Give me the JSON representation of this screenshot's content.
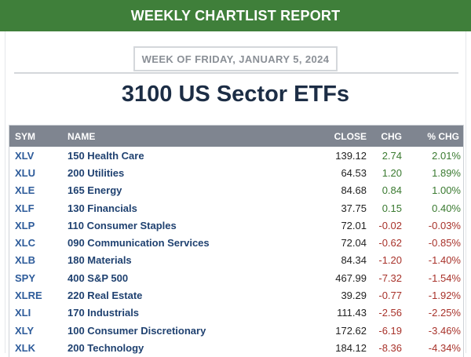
{
  "header": {
    "banner_title": "WEEKLY CHARTLIST REPORT",
    "week_label": "WEEK OF FRIDAY, JANUARY 5, 2024",
    "page_title": "3100 US Sector ETFs"
  },
  "colors": {
    "banner_bg": "#3f7f3a",
    "table_header_bg": "#7f8590",
    "positive": "#3a7a30",
    "negative": "#a8322a",
    "symbol_link": "#2d5b9a"
  },
  "table": {
    "columns": {
      "sym": "SYM",
      "name": "NAME",
      "close": "CLOSE",
      "chg": "CHG",
      "pct_chg": "% CHG"
    },
    "rows": [
      {
        "sym": "XLV",
        "name": "150 Health Care",
        "close": "139.12",
        "chg": "2.74",
        "pct": "2.01%",
        "dir": "pos"
      },
      {
        "sym": "XLU",
        "name": "200 Utilities",
        "close": "64.53",
        "chg": "1.20",
        "pct": "1.89%",
        "dir": "pos"
      },
      {
        "sym": "XLE",
        "name": "165 Energy",
        "close": "84.68",
        "chg": "0.84",
        "pct": "1.00%",
        "dir": "pos"
      },
      {
        "sym": "XLF",
        "name": "130 Financials",
        "close": "37.75",
        "chg": "0.15",
        "pct": "0.40%",
        "dir": "pos"
      },
      {
        "sym": "XLP",
        "name": "110 Consumer Staples",
        "close": "72.01",
        "chg": "-0.02",
        "pct": "-0.03%",
        "dir": "neg"
      },
      {
        "sym": "XLC",
        "name": "090 Communication Services",
        "close": "72.04",
        "chg": "-0.62",
        "pct": "-0.85%",
        "dir": "neg"
      },
      {
        "sym": "XLB",
        "name": "180 Materials",
        "close": "84.34",
        "chg": "-1.20",
        "pct": "-1.40%",
        "dir": "neg"
      },
      {
        "sym": "SPY",
        "name": "400 S&P 500",
        "close": "467.99",
        "chg": "-7.32",
        "pct": "-1.54%",
        "dir": "neg"
      },
      {
        "sym": "XLRE",
        "name": "220 Real Estate",
        "close": "39.29",
        "chg": "-0.77",
        "pct": "-1.92%",
        "dir": "neg"
      },
      {
        "sym": "XLI",
        "name": "170 Industrials",
        "close": "111.43",
        "chg": "-2.56",
        "pct": "-2.25%",
        "dir": "neg"
      },
      {
        "sym": "XLY",
        "name": "100 Consumer Discretionary",
        "close": "172.62",
        "chg": "-6.19",
        "pct": "-3.46%",
        "dir": "neg"
      },
      {
        "sym": "XLK",
        "name": "200 Technology",
        "close": "184.12",
        "chg": "-8.36",
        "pct": "-4.34%",
        "dir": "neg"
      }
    ]
  }
}
